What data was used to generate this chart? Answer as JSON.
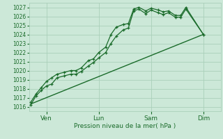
{
  "xlabel": "Pression niveau de la mer( hPa )",
  "bg_color": "#cce8d8",
  "grid_color": "#aacfba",
  "line_color": "#1a6b2a",
  "ylim": [
    1015.5,
    1027.5
  ],
  "yticks": [
    1016,
    1017,
    1018,
    1019,
    1020,
    1021,
    1022,
    1023,
    1024,
    1025,
    1026,
    1027
  ],
  "xtick_labels": [
    "Ven",
    "Lun",
    "Sam",
    "Dim"
  ],
  "xtick_positions": [
    1,
    4,
    7,
    10
  ],
  "xlim": [
    0,
    11
  ],
  "line1_x": [
    0.1,
    0.4,
    0.7,
    1.0,
    1.3,
    1.6,
    2.0,
    2.4,
    2.7,
    3.0,
    3.4,
    3.7,
    4.0,
    4.4,
    4.7,
    5.0,
    5.4,
    5.7,
    6.0,
    6.3,
    6.7,
    7.0,
    7.4,
    7.7,
    8.0,
    8.4,
    8.7,
    9.0,
    10.0
  ],
  "line1_y": [
    1016.2,
    1017.2,
    1017.8,
    1018.3,
    1018.5,
    1019.2,
    1019.4,
    1019.6,
    1019.6,
    1019.9,
    1020.5,
    1020.9,
    1021.4,
    1022.0,
    1023.0,
    1023.8,
    1024.5,
    1024.7,
    1026.6,
    1026.8,
    1026.3,
    1026.7,
    1026.4,
    1026.2,
    1026.4,
    1025.9,
    1025.9,
    1026.8,
    1024.0
  ],
  "line2_x": [
    0.1,
    0.4,
    0.7,
    1.0,
    1.3,
    1.6,
    2.0,
    2.4,
    2.7,
    3.0,
    3.4,
    3.7,
    4.0,
    4.4,
    4.7,
    5.0,
    5.4,
    5.7,
    6.0,
    6.3,
    6.7,
    7.0,
    7.4,
    7.7,
    8.0,
    8.4,
    8.7,
    9.0,
    10.0
  ],
  "line2_y": [
    1016.5,
    1017.4,
    1018.1,
    1018.8,
    1019.2,
    1019.6,
    1019.8,
    1020.0,
    1020.0,
    1020.3,
    1021.1,
    1021.3,
    1022.0,
    1022.6,
    1024.0,
    1024.8,
    1025.1,
    1025.2,
    1026.8,
    1027.0,
    1026.6,
    1026.9,
    1026.7,
    1026.5,
    1026.6,
    1026.1,
    1026.1,
    1027.0,
    1024.0
  ],
  "line3_x": [
    0.1,
    10.0
  ],
  "line3_y": [
    1016.3,
    1024.0
  ],
  "figsize": [
    3.2,
    2.0
  ],
  "dpi": 100
}
